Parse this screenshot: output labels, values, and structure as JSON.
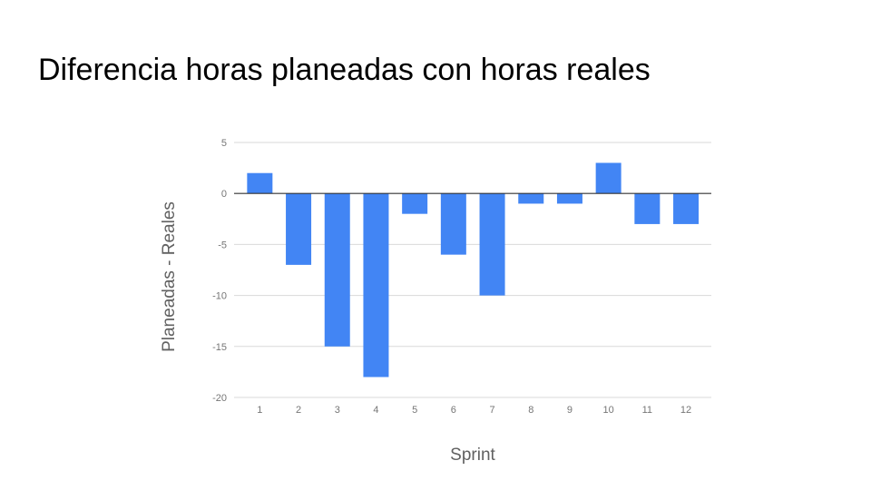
{
  "slide": {
    "title": "Diferencia horas planeadas con horas reales"
  },
  "colors": {
    "bar": "#4285F4",
    "grid": "#d9d9d9",
    "zero_line": "#333333",
    "tick_text": "#757575",
    "axis_title": "#616161"
  },
  "chart_data": {
    "type": "bar",
    "title": "",
    "xlabel": "Sprint",
    "ylabel": "Planeadas - Reales",
    "categories": [
      "1",
      "2",
      "3",
      "4",
      "5",
      "6",
      "7",
      "8",
      "9",
      "10",
      "11",
      "12"
    ],
    "values": [
      2,
      -7,
      -15,
      -18,
      -2,
      -6,
      -10,
      -1,
      -1,
      3,
      -3,
      -3
    ],
    "ylim": [
      -20,
      5
    ],
    "yticks": [
      5,
      0,
      -5,
      -10,
      -15,
      -20
    ],
    "grid": true,
    "legend": "none"
  }
}
